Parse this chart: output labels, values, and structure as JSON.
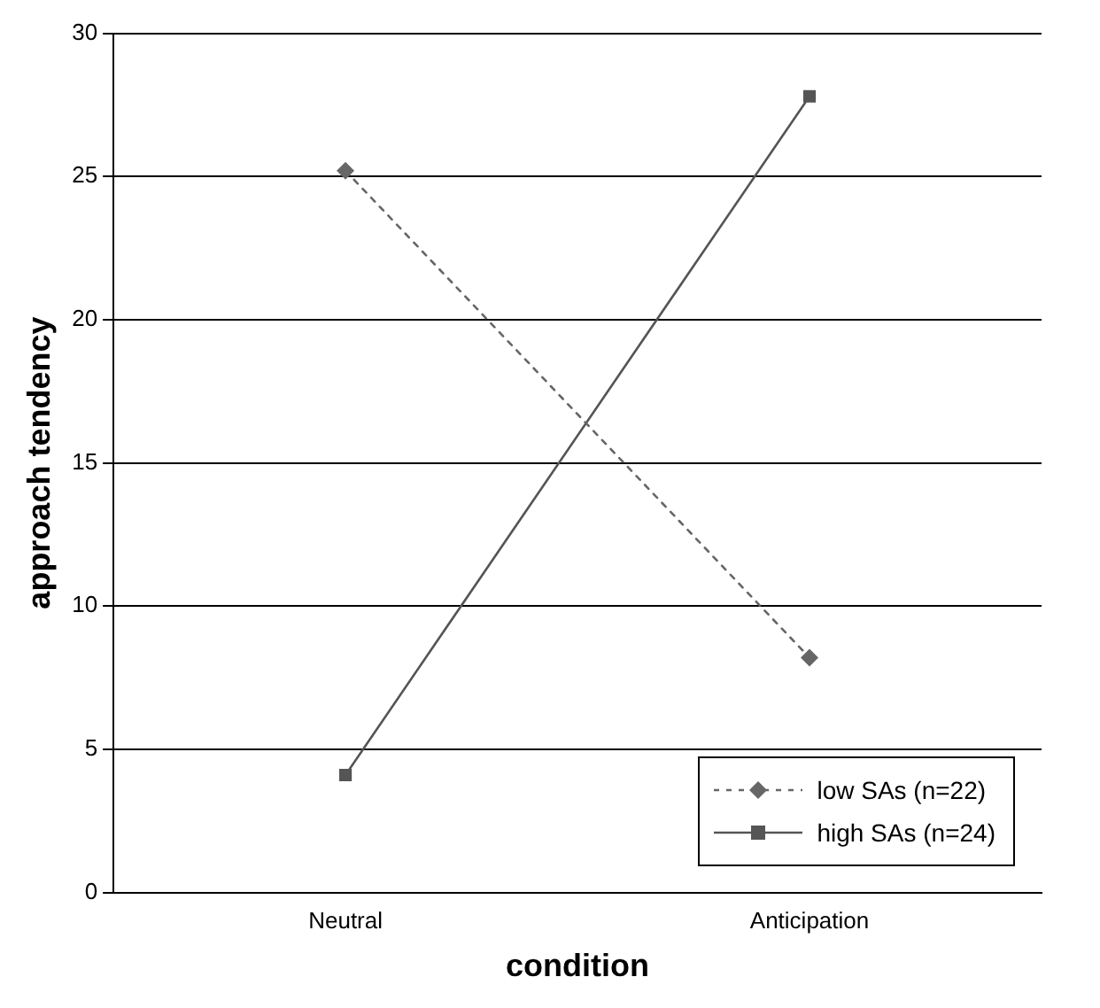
{
  "chart_data": {
    "type": "line",
    "xlabel": "condition",
    "ylabel": "approach tendency",
    "categories": [
      "Neutral",
      "Anticipation"
    ],
    "series": [
      {
        "name": "low SAs (n=22)",
        "color": "#666666",
        "values": [
          25.2,
          8.2
        ],
        "marker": "diamond",
        "line_style": "dotted"
      },
      {
        "name": "high SAs (n=24)",
        "color": "#555555",
        "values": [
          4.1,
          27.8
        ],
        "marker": "square",
        "line_style": "solid"
      }
    ],
    "ylim": [
      0,
      30
    ],
    "yticks": [
      0,
      5,
      10,
      15,
      20,
      25,
      30
    ],
    "grid": "y",
    "legend": "bottom right"
  }
}
